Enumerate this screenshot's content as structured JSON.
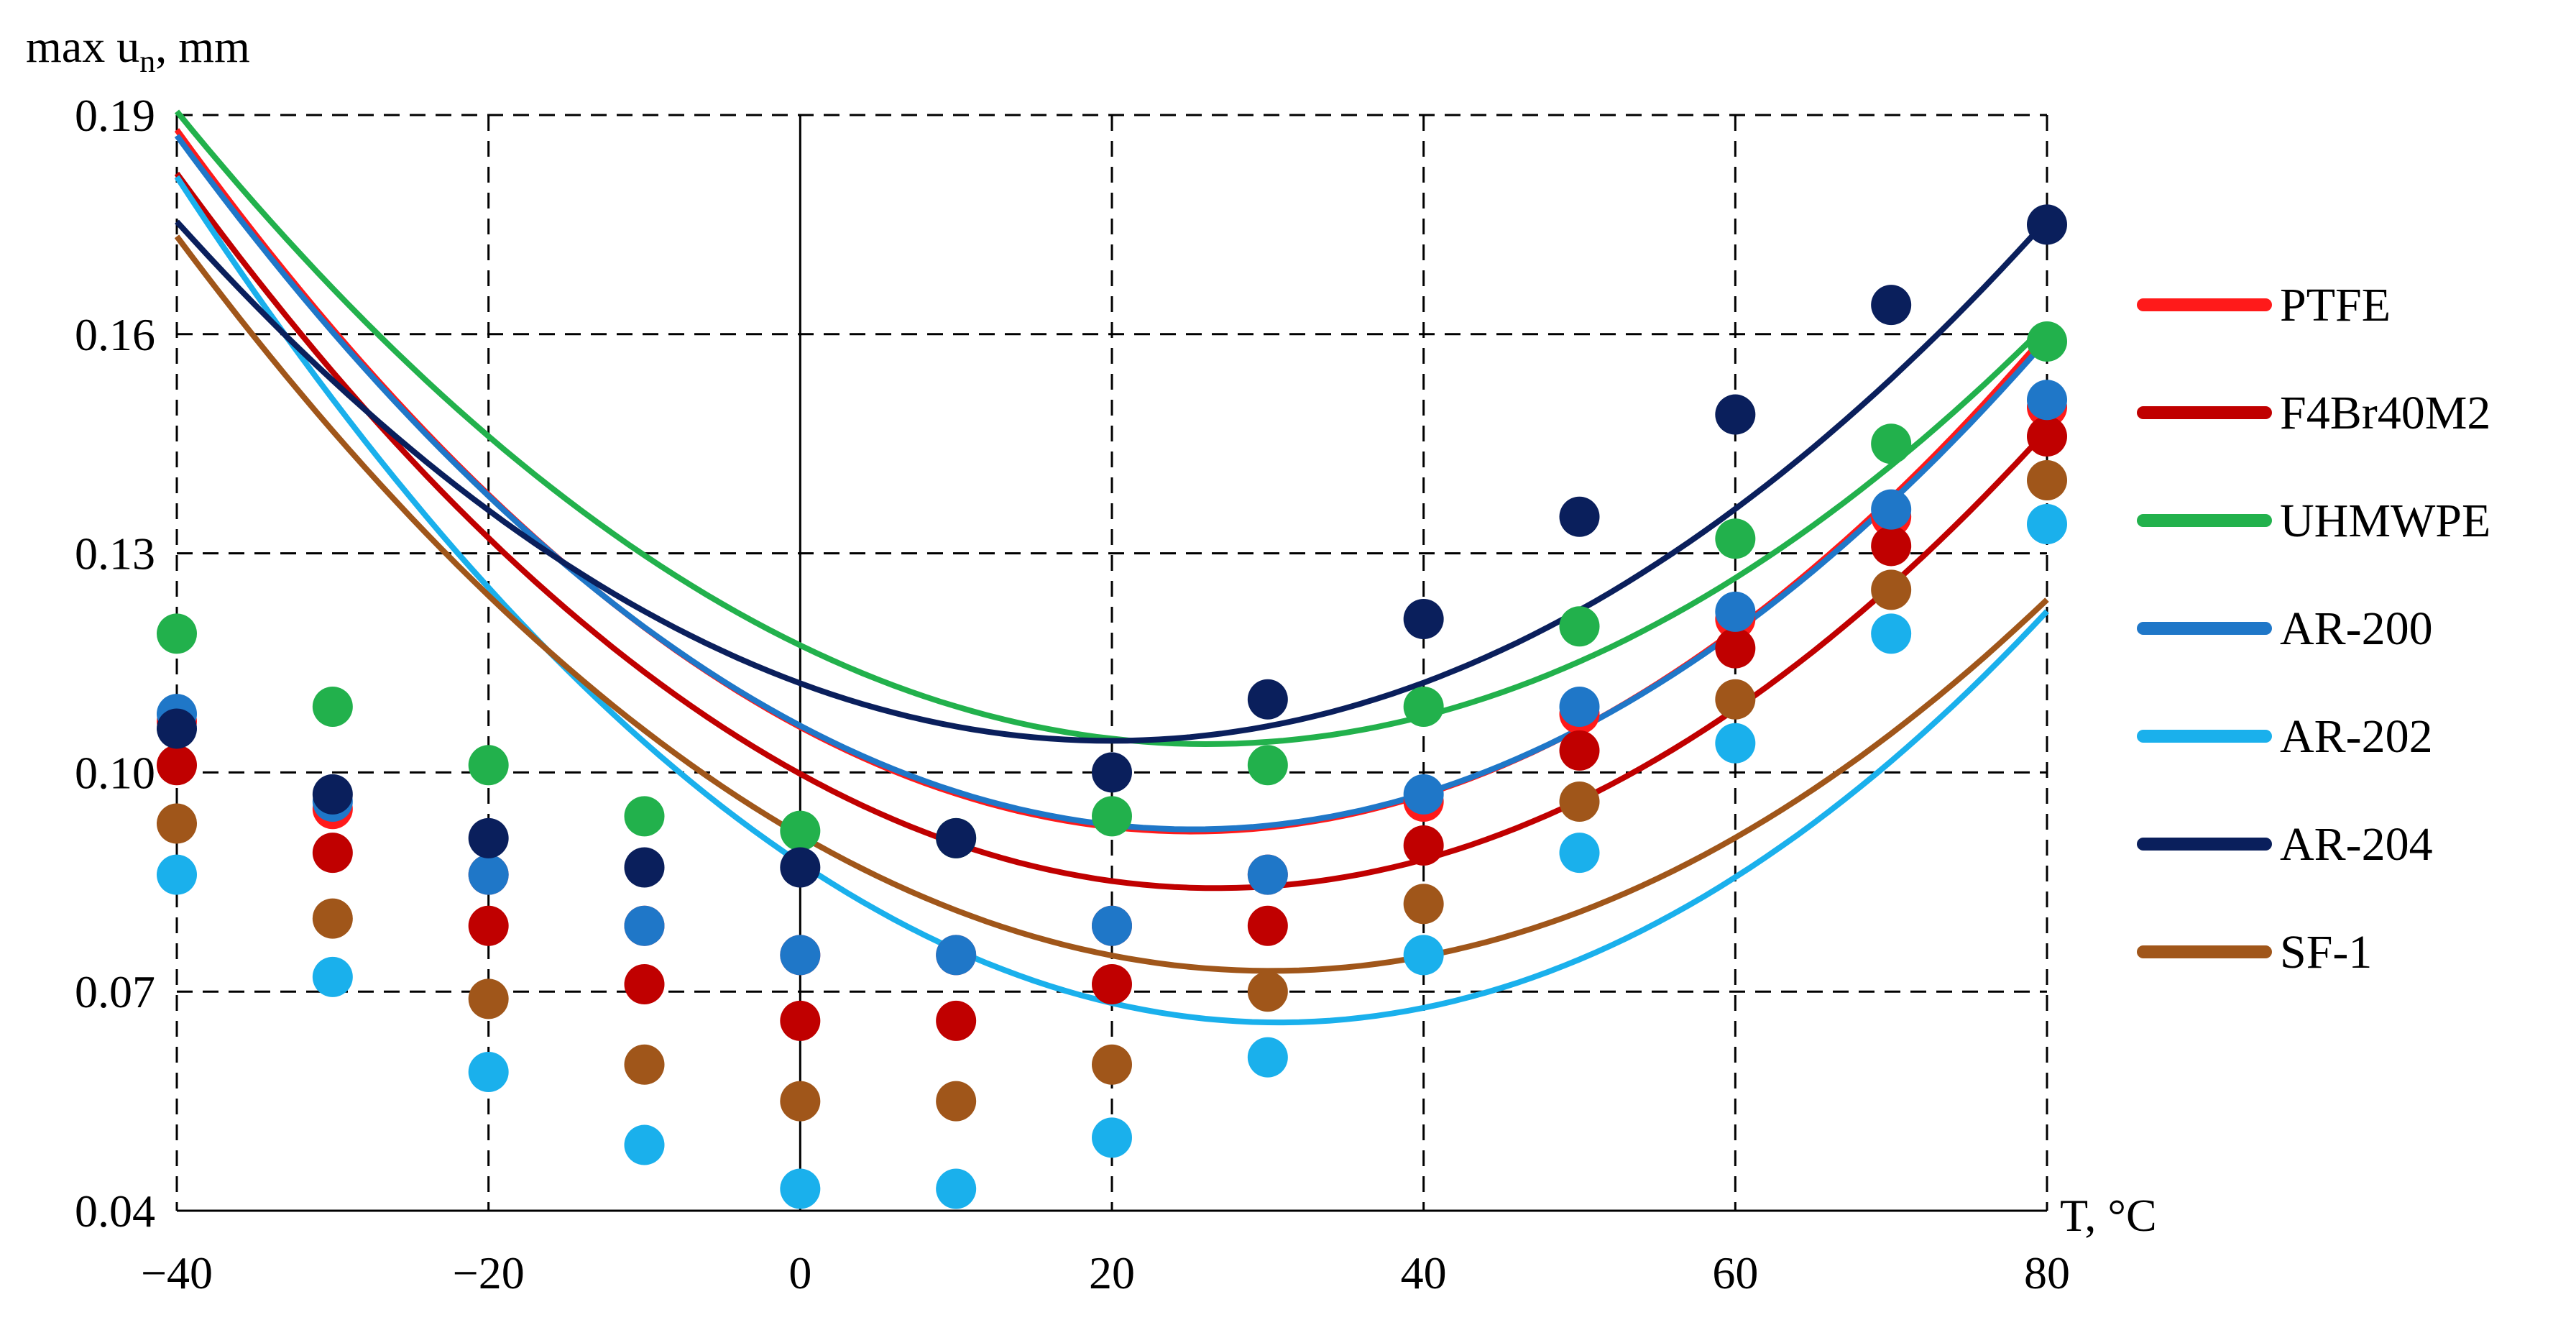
{
  "chart_data": {
    "type": "scatter",
    "ylabel": "max u",
    "ylabel_sub": "n",
    "ylabel_unit": ", mm",
    "xlabel": "T, °C",
    "xlim": [
      -40,
      80
    ],
    "ylim": [
      0.04,
      0.19
    ],
    "x_ticks": [
      -40,
      -20,
      0,
      20,
      40,
      60,
      80
    ],
    "y_ticks": [
      0.04,
      0.07,
      0.1,
      0.13,
      0.16,
      0.19
    ],
    "x_tick_labels": [
      "−40",
      "−20",
      "0",
      "20",
      "40",
      "60",
      "80"
    ],
    "y_tick_labels": [
      "0.04",
      "0.07",
      "0.10",
      "0.13",
      "0.16",
      "0.19"
    ],
    "grid": true,
    "legend_position": "right",
    "x": [
      -40,
      -30,
      -20,
      -10,
      0,
      10,
      20,
      30,
      40,
      50,
      60,
      70,
      80
    ],
    "series": [
      {
        "name": "PTFE",
        "color": "#ff1a1a",
        "values": [
          0.107,
          0.095,
          0.086,
          0.079,
          0.075,
          0.075,
          0.079,
          0.086,
          0.096,
          0.108,
          0.121,
          0.135,
          0.15
        ],
        "curve": [
          0.1062,
          -0.001138,
          2.266e-05
        ]
      },
      {
        "name": "F4Br40M2",
        "color": "#c00000",
        "values": [
          0.101,
          0.089,
          0.079,
          0.071,
          0.066,
          0.066,
          0.071,
          0.079,
          0.09,
          0.103,
          0.117,
          0.131,
          0.146
        ],
        "curve": [
          0.0998,
          -0.001174,
          2.203e-05
        ]
      },
      {
        "name": "UHMWPE",
        "color": "#22b14c",
        "values": [
          0.119,
          0.109,
          0.101,
          0.094,
          0.092,
          0.091,
          0.094,
          0.101,
          0.109,
          0.12,
          0.132,
          0.145,
          0.159
        ],
        "curve": [
          0.1174,
          -0.001035,
          1.981e-05
        ]
      },
      {
        "name": "AR-200",
        "color": "#1f77c8",
        "values": [
          0.108,
          0.096,
          0.086,
          0.079,
          0.075,
          0.075,
          0.079,
          0.086,
          0.097,
          0.109,
          0.122,
          0.136,
          0.151
        ],
        "curve": [
          0.1064,
          -0.001126,
          2.234e-05
        ]
      },
      {
        "name": "AR-202",
        "color": "#1ab0ec",
        "values": [
          0.086,
          0.072,
          0.059,
          0.049,
          0.043,
          0.043,
          0.05,
          0.061,
          0.075,
          0.089,
          0.104,
          0.119,
          0.134
        ],
        "curve": [
          0.0876,
          -0.001422,
          2.316e-05
        ]
      },
      {
        "name": "AR-204",
        "color": "#0a1f5c",
        "values": [
          0.106,
          0.097,
          0.091,
          0.087,
          0.087,
          0.091,
          0.1,
          0.11,
          0.121,
          0.135,
          0.149,
          0.164,
          0.175
        ],
        "curve": [
          0.1122,
          -0.000789,
          1.978e-05
        ]
      },
      {
        "name": "SF-1",
        "color": "#a0561a",
        "values": [
          0.093,
          0.08,
          0.069,
          0.06,
          0.055,
          0.055,
          0.06,
          0.07,
          0.082,
          0.096,
          0.11,
          0.125,
          0.14
        ],
        "curve": [
          0.0914,
          -0.001232,
          2.044e-05
        ]
      }
    ]
  }
}
